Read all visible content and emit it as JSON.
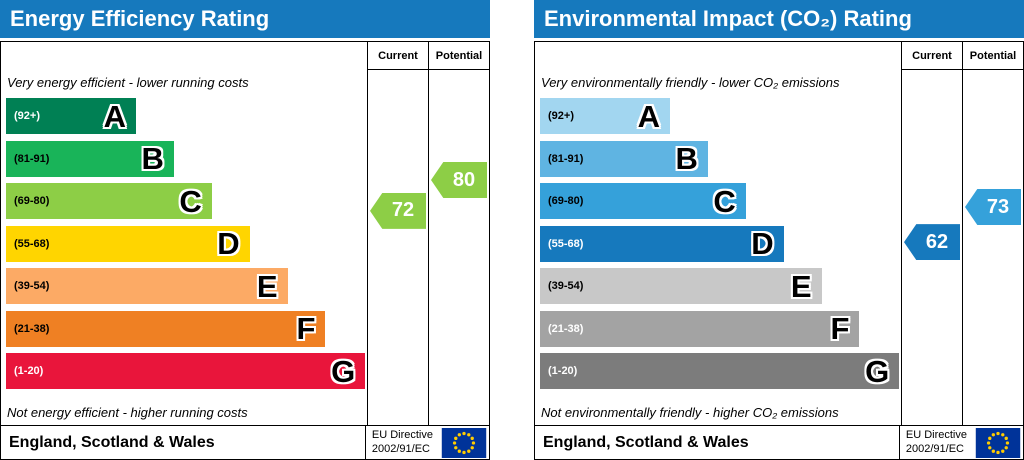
{
  "chart_data": [
    {
      "type": "bar",
      "title": "Energy Efficiency Rating",
      "header_color": "#1679bd",
      "columns": {
        "current": "Current",
        "potential": "Potential"
      },
      "caption_top": "Very energy efficient - lower running costs",
      "caption_bottom": "Not energy efficient - higher running costs",
      "bands": [
        {
          "letter": "A",
          "label": "(92+)",
          "min": 92,
          "max": 100,
          "color": "#008054",
          "label_color": "#ffffff",
          "width_pct": 36
        },
        {
          "letter": "B",
          "label": "(81-91)",
          "min": 81,
          "max": 91,
          "color": "#19b459",
          "label_color": "#000000",
          "width_pct": 46.5
        },
        {
          "letter": "C",
          "label": "(69-80)",
          "min": 69,
          "max": 80,
          "color": "#8dce46",
          "label_color": "#000000",
          "width_pct": 57
        },
        {
          "letter": "D",
          "label": "(55-68)",
          "min": 55,
          "max": 68,
          "color": "#ffd500",
          "label_color": "#000000",
          "width_pct": 67.5
        },
        {
          "letter": "E",
          "label": "(39-54)",
          "min": 39,
          "max": 54,
          "color": "#fcaa65",
          "label_color": "#000000",
          "width_pct": 78
        },
        {
          "letter": "F",
          "label": "(21-38)",
          "min": 21,
          "max": 38,
          "color": "#ef8023",
          "label_color": "#000000",
          "width_pct": 88.5
        },
        {
          "letter": "G",
          "label": "(1-20)",
          "min": 1,
          "max": 20,
          "color": "#e9153b",
          "label_color": "#ffffff",
          "width_pct": 99.5
        }
      ],
      "current": {
        "value": 72,
        "color": "#8dce46"
      },
      "potential": {
        "value": 80,
        "color": "#8dce46"
      },
      "footer": {
        "region": "England, Scotland & Wales",
        "directive_line1": "EU Directive",
        "directive_line2": "2002/91/EC",
        "flag_bg": "#003399",
        "flag_stars": "#ffcc00"
      }
    },
    {
      "type": "bar",
      "title": "Environmental Impact (CO₂) Rating",
      "header_color": "#1679bd",
      "columns": {
        "current": "Current",
        "potential": "Potential"
      },
      "caption_top": "Very environmentally friendly - lower CO₂ emissions",
      "caption_bottom": "Not environmentally friendly - higher CO₂ emissions",
      "bands": [
        {
          "letter": "A",
          "label": "(92+)",
          "min": 92,
          "max": 100,
          "color": "#a2d6f0",
          "label_color": "#000000",
          "width_pct": 36
        },
        {
          "letter": "B",
          "label": "(81-91)",
          "min": 81,
          "max": 91,
          "color": "#5fb4e2",
          "label_color": "#000000",
          "width_pct": 46.5
        },
        {
          "letter": "C",
          "label": "(69-80)",
          "min": 69,
          "max": 80,
          "color": "#35a1da",
          "label_color": "#000000",
          "width_pct": 57
        },
        {
          "letter": "D",
          "label": "(55-68)",
          "min": 55,
          "max": 68,
          "color": "#1679bd",
          "label_color": "#ffffff",
          "width_pct": 67.5
        },
        {
          "letter": "E",
          "label": "(39-54)",
          "min": 39,
          "max": 54,
          "color": "#c8c8c8",
          "label_color": "#000000",
          "width_pct": 78
        },
        {
          "letter": "F",
          "label": "(21-38)",
          "min": 21,
          "max": 38,
          "color": "#a3a3a3",
          "label_color": "#ffffff",
          "width_pct": 88.5
        },
        {
          "letter": "G",
          "label": "(1-20)",
          "min": 1,
          "max": 20,
          "color": "#7c7c7c",
          "label_color": "#ffffff",
          "width_pct": 99.5
        }
      ],
      "current": {
        "value": 62,
        "color": "#1679bd"
      },
      "potential": {
        "value": 73,
        "color": "#35a1da"
      },
      "footer": {
        "region": "England, Scotland & Wales",
        "directive_line1": "EU Directive",
        "directive_line2": "2002/91/EC",
        "flag_bg": "#003399",
        "flag_stars": "#ffcc00"
      }
    }
  ]
}
